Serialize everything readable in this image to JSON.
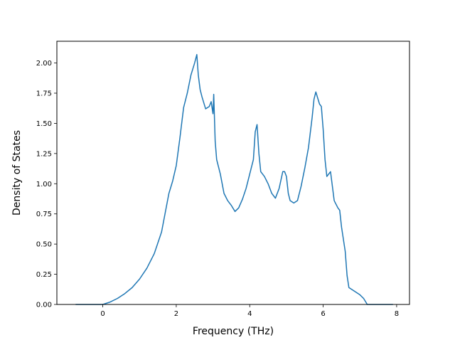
{
  "chart_data": {
    "type": "line",
    "title": "",
    "xlabel": "Frequency (THz)",
    "ylabel": "Density of States",
    "xlim": [
      -1.25,
      8.35
    ],
    "ylim": [
      0.0,
      2.18
    ],
    "xticks": [
      0,
      2,
      4,
      6,
      8
    ],
    "xtick_labels": [
      "0",
      "2",
      "4",
      "6",
      "8"
    ],
    "yticks": [
      0.0,
      0.25,
      0.5,
      0.75,
      1.0,
      1.25,
      1.5,
      1.75,
      2.0
    ],
    "ytick_labels": [
      "0.00",
      "0.25",
      "0.50",
      "0.75",
      "1.00",
      "1.25",
      "1.50",
      "1.75",
      "2.00"
    ],
    "grid": false,
    "legend": false,
    "line_color": "#1f77b4",
    "series": [
      {
        "x": [
          -0.74,
          0.0,
          0.2,
          0.4,
          0.6,
          0.8,
          1.0,
          1.2,
          1.4,
          1.6,
          1.8,
          1.9,
          2.0,
          2.1,
          2.2,
          2.3,
          2.4,
          2.5,
          2.56,
          2.6,
          2.65,
          2.7,
          2.8,
          2.9,
          2.95,
          3.0,
          3.02,
          3.06,
          3.1,
          3.2,
          3.3,
          3.4,
          3.5,
          3.6,
          3.7,
          3.8,
          3.9,
          4.0,
          4.1,
          4.15,
          4.2,
          4.25,
          4.3,
          4.4,
          4.5,
          4.6,
          4.7,
          4.8,
          4.9,
          4.95,
          5.0,
          5.05,
          5.1,
          5.2,
          5.3,
          5.4,
          5.5,
          5.6,
          5.7,
          5.75,
          5.8,
          5.9,
          5.95,
          6.0,
          6.05,
          6.1,
          6.15,
          6.2,
          6.3,
          6.4,
          6.45,
          6.5,
          6.6,
          6.65,
          6.7,
          6.8,
          7.0,
          7.1,
          7.2,
          7.9
        ],
        "y": [
          0.0,
          0.0,
          0.02,
          0.05,
          0.09,
          0.14,
          0.21,
          0.3,
          0.42,
          0.6,
          0.92,
          1.02,
          1.15,
          1.38,
          1.63,
          1.75,
          1.9,
          2.0,
          2.07,
          1.9,
          1.78,
          1.72,
          1.62,
          1.64,
          1.68,
          1.58,
          1.74,
          1.35,
          1.2,
          1.08,
          0.92,
          0.86,
          0.82,
          0.77,
          0.8,
          0.87,
          0.96,
          1.08,
          1.2,
          1.43,
          1.49,
          1.25,
          1.1,
          1.06,
          1.0,
          0.92,
          0.88,
          0.96,
          1.1,
          1.1,
          1.06,
          0.92,
          0.86,
          0.84,
          0.86,
          0.98,
          1.13,
          1.3,
          1.55,
          1.7,
          1.76,
          1.66,
          1.64,
          1.45,
          1.2,
          1.06,
          1.08,
          1.1,
          0.86,
          0.8,
          0.78,
          0.64,
          0.44,
          0.24,
          0.14,
          0.12,
          0.08,
          0.05,
          0.0,
          0.0
        ]
      }
    ]
  }
}
